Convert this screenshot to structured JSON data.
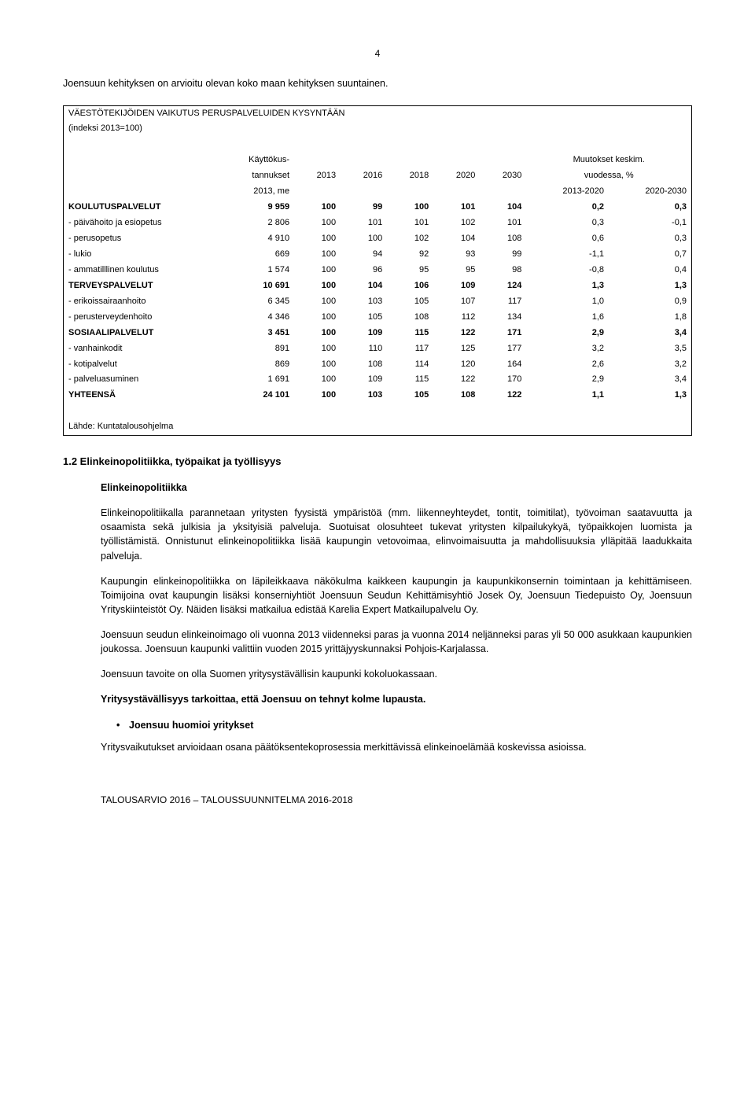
{
  "page_number": "4",
  "intro": "Joensuun kehityksen on arvioitu olevan koko maan kehityksen suuntainen.",
  "table": {
    "title": "VÄESTÖTEKIJÖIDEN VAIKUTUS PERUSPALVELUIDEN KYSYNTÄÄN",
    "subtitle": "(indeksi 2013=100)",
    "col_head_left_1": "Käyttökus-",
    "col_head_left_2": "tannukset",
    "col_head_left_3": "2013, me",
    "years": [
      "2013",
      "2016",
      "2018",
      "2020",
      "2030"
    ],
    "right_head_1": "Muutokset keskim.",
    "right_head_2": "vuodessa, %",
    "right_head_3a": "2013-2020",
    "right_head_3b": "2020-2030",
    "rows": [
      {
        "label": "KOULUTUSPALVELUT",
        "v": [
          "9 959",
          "100",
          "99",
          "100",
          "101",
          "104",
          "0,2",
          "0,3"
        ],
        "bold": true
      },
      {
        "label": "- päivähoito ja esiopetus",
        "v": [
          "2 806",
          "100",
          "101",
          "101",
          "102",
          "101",
          "0,3",
          "-0,1"
        ]
      },
      {
        "label": "- perusopetus",
        "v": [
          "4 910",
          "100",
          "100",
          "102",
          "104",
          "108",
          "0,6",
          "0,3"
        ]
      },
      {
        "label": "- lukio",
        "v": [
          "669",
          "100",
          "94",
          "92",
          "93",
          "99",
          "-1,1",
          "0,7"
        ]
      },
      {
        "label": "- ammatilllinen koulutus",
        "v": [
          "1 574",
          "100",
          "96",
          "95",
          "95",
          "98",
          "-0,8",
          "0,4"
        ]
      },
      {
        "label": "TERVEYSPALVELUT",
        "v": [
          "10 691",
          "100",
          "104",
          "106",
          "109",
          "124",
          "1,3",
          "1,3"
        ],
        "bold": true
      },
      {
        "label": "- erikoissairaanhoito",
        "v": [
          "6 345",
          "100",
          "103",
          "105",
          "107",
          "117",
          "1,0",
          "0,9"
        ]
      },
      {
        "label": "- perusterveydenhoito",
        "v": [
          "4 346",
          "100",
          "105",
          "108",
          "112",
          "134",
          "1,6",
          "1,8"
        ]
      },
      {
        "label": "SOSIAALIPALVELUT",
        "v": [
          "3 451",
          "100",
          "109",
          "115",
          "122",
          "171",
          "2,9",
          "3,4"
        ],
        "bold": true
      },
      {
        "label": "- vanhainkodit",
        "v": [
          "891",
          "100",
          "110",
          "117",
          "125",
          "177",
          "3,2",
          "3,5"
        ]
      },
      {
        "label": "- kotipalvelut",
        "v": [
          "869",
          "100",
          "108",
          "114",
          "120",
          "164",
          "2,6",
          "3,2"
        ]
      },
      {
        "label": "- palveluasuminen",
        "v": [
          "1 691",
          "100",
          "109",
          "115",
          "122",
          "170",
          "2,9",
          "3,4"
        ]
      },
      {
        "label": "YHTEENSÄ",
        "v": [
          "24 101",
          "100",
          "103",
          "105",
          "108",
          "122",
          "1,1",
          "1,3"
        ],
        "bold": true
      }
    ],
    "source": "Lähde: Kuntatalousohjelma"
  },
  "section_1_2": "1.2 Elinkeinopolitiikka, työpaikat ja työllisyys",
  "sub_elinkeinopolitiikka": "Elinkeinopolitiikka",
  "p1": "Elinkeinopolitiikalla parannetaan yritysten fyysistä ympäristöä (mm. liikenneyhteydet, tontit, toimitilat), työvoiman saatavuutta ja osaamista sekä julkisia ja yksityisiä palveluja. Suotuisat olosuhteet tukevat yritysten kilpailukykyä, työpaikkojen luomista ja työllistämistä. Onnistunut elinkeinopolitiikka lisää kaupungin vetovoimaa, elinvoimaisuutta ja mahdollisuuksia ylläpitää laadukkaita palveluja.",
  "p2": "Kaupungin elinkeinopolitiikka on läpileikkaava näkökulma kaikkeen kaupungin ja kaupunkikonsernin toimintaan ja kehittämiseen. Toimijoina ovat kaupungin lisäksi konserniyhtiöt Joensuun Seudun Kehittämisyhtiö Josek Oy, Joensuun Tiedepuisto Oy, Joensuun Yrityskiinteistöt Oy. Näiden lisäksi matkailua edistää Karelia Expert Matkailupalvelu Oy.",
  "p3": "Joensuun seudun elinkeinoimago oli vuonna 2013 viidenneksi paras ja vuonna 2014 neljänneksi paras yli 50 000 asukkaan kaupunkien joukossa. Joensuun kaupunki valittiin vuoden 2015 yrittäjyyskunnaksi Pohjois-Karjalassa.",
  "p4": "Joensuun tavoite on olla Suomen yritysystävällisin kaupunki kokoluokassaan.",
  "p5_bold": "Yritysystävällisyys tarkoittaa, että Joensuu on tehnyt kolme lupausta.",
  "bullet_1": "Joensuu huomioi yritykset",
  "p6": "Yritysvaikutukset arvioidaan osana päätöksentekoprosessia merkittävissä elinkeinoelämää koskevissa asioissa.",
  "footer": "TALOUSARVIO 2016 – TALOUSSUUNNITELMA 2016-2018"
}
